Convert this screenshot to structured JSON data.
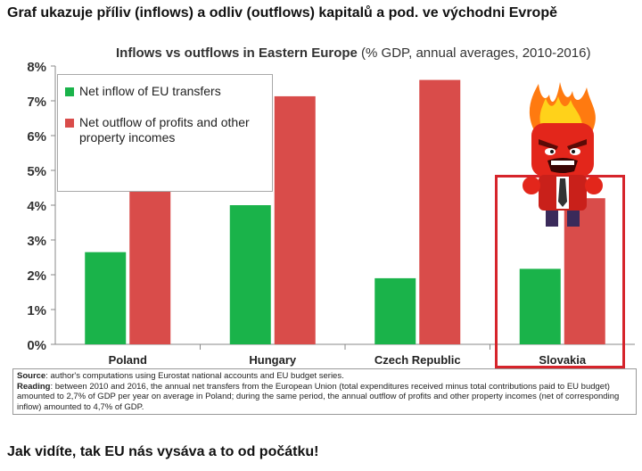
{
  "top_caption": "Graf ukazuje příliv (inflows) a odliv (outflows) kapitalů a pod. ve východni Evropě",
  "bottom_caption": "Jak vidíte, tak EU nás vysáva a to od počátku!",
  "chart_data": {
    "type": "bar",
    "title": "Inflows vs outflows in Eastern Europe",
    "subtitle": "(% GDP, annual averages, 2010-2016)",
    "categories": [
      "Poland",
      "Hungary",
      "Czech Republic",
      "Slovakia"
    ],
    "series": [
      {
        "name": "Net inflow of EU transfers",
        "color": "#1ab34a",
        "values": [
          2.65,
          4.0,
          1.9,
          2.17
        ]
      },
      {
        "name": "Net outflow of profits and other property incomes",
        "color": "#d94c4a",
        "values": [
          4.7,
          7.13,
          7.6,
          4.2
        ]
      }
    ],
    "ylim": [
      0,
      8
    ],
    "yticks": [
      "0%",
      "1%",
      "2%",
      "3%",
      "4%",
      "5%",
      "6%",
      "7%",
      "8%"
    ],
    "xlabel": "",
    "ylabel": "",
    "grid": false,
    "legend_position": "top-left",
    "highlighted_category": "Slovakia"
  },
  "notes": {
    "source_label": "Source",
    "source_text": ": author's computations using Eurostat national accounts and EU budget series.",
    "reading_label": "Reading",
    "reading_text": ": between 2010 and 2016, the annual net transfers from the European Union (total expenditures received minus total contributions paid to EU budget) amounted to 2,7% of GDP per year on average in Poland; during the same period, the annual outflow of profits and other property incomes (net of corresponding inflow) amounted to 4,7% of GDP."
  },
  "colors": {
    "inflow": "#1ab34a",
    "outflow": "#d94c4a",
    "highlight": "#d6242b"
  }
}
